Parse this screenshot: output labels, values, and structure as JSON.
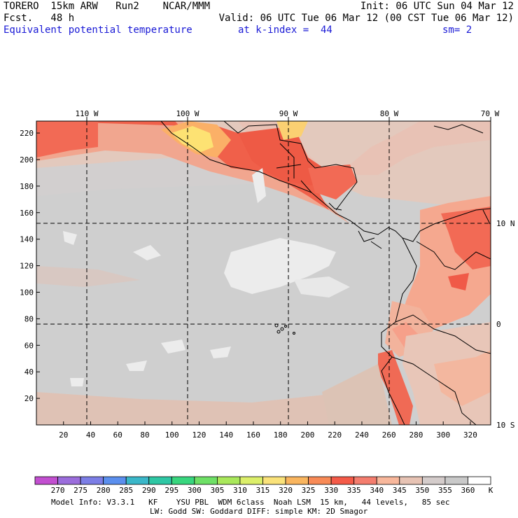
{
  "header": {
    "model": "TORERO  15km ARW   Run2    NCAR/MMM",
    "init": "Init: 06 UTC Sun 04 Mar 12",
    "fcst": "Fcst.   48 h",
    "valid": "Valid: 06 UTC Tue 06 Mar 12 (00 CST Tue 06 Mar 12)",
    "field": "Equivalent potential temperature",
    "level": "at k-index =  44",
    "smooth": "sm= 2"
  },
  "map": {
    "lon_labels": [
      "110 W",
      "100 W",
      "90 W",
      "80 W",
      "70 W"
    ],
    "lat_labels": [
      "10 N",
      "0",
      "10 S"
    ],
    "y_ticks": [
      "20",
      "40",
      "60",
      "80",
      "100",
      "120",
      "140",
      "160",
      "180",
      "200",
      "220"
    ],
    "x_ticks": [
      "20",
      "40",
      "60",
      "80",
      "100",
      "120",
      "140",
      "160",
      "180",
      "200",
      "220",
      "240",
      "260",
      "280",
      "300",
      "320"
    ]
  },
  "colorbar": {
    "values": [
      "270",
      "275",
      "280",
      "285",
      "290",
      "295",
      "300",
      "305",
      "310",
      "315",
      "320",
      "325",
      "330",
      "335",
      "340",
      "345",
      "350",
      "355",
      "360"
    ],
    "unit": "K",
    "colors": [
      "#c24fd0",
      "#9b6ddc",
      "#7c7ee6",
      "#5b8fee",
      "#3ab7c9",
      "#2ec7a4",
      "#38d67e",
      "#6ee066",
      "#a9e85b",
      "#dcef6a",
      "#fae27a",
      "#f9b55e",
      "#f88a56",
      "#f45a48",
      "#f47d6e",
      "#f8b79b",
      "#e7c3b4",
      "#d4cccb",
      "#c9c9c9",
      "#ffffff"
    ]
  },
  "footer": {
    "line1": "Model Info: V3.3.1   KF    YSU PBL  WDM 6class  Noah LSM  15 km,   44 levels,   85 sec",
    "line2": "LW: Godd SW: Goddard DIFF: simple KM: 2D Smagor"
  }
}
